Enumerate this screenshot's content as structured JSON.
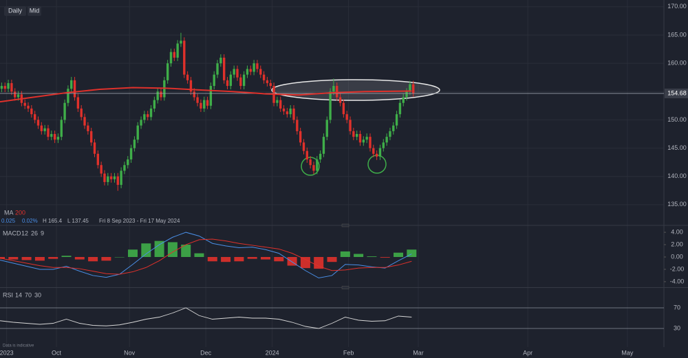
{
  "chart_data": {
    "type": "candlestick",
    "buttons": [
      "Daily",
      "Mid"
    ],
    "xlim": [
      0,
      200
    ],
    "xticks": [
      {
        "value": 2,
        "label": "2023"
      },
      {
        "value": 17,
        "label": "Oct"
      },
      {
        "value": 39,
        "label": "Nov"
      },
      {
        "value": 62,
        "label": "Dec"
      },
      {
        "value": 82,
        "label": "2024"
      },
      {
        "value": 105,
        "label": "Feb"
      },
      {
        "value": 126,
        "label": "Mar"
      },
      {
        "value": 159,
        "label": "Apr"
      },
      {
        "value": 189,
        "label": "May"
      }
    ],
    "ylim": [
      131.7,
      171.2
    ],
    "yticks": [
      {
        "value": 135,
        "label": "135.00"
      },
      {
        "value": 140,
        "label": "140.00"
      },
      {
        "value": 145,
        "label": "145.00"
      },
      {
        "value": 150,
        "label": "150.00"
      },
      {
        "value": 155,
        "label": "155.00"
      },
      {
        "value": 160,
        "label": "160.00"
      },
      {
        "value": 165,
        "label": "165.00"
      },
      {
        "value": 170,
        "label": "170.00"
      }
    ],
    "grid": true,
    "up_color": "#3fae49",
    "down_color": "#e0312b",
    "ohlc": [
      [
        155.5,
        156.6,
        154.9,
        156
      ],
      [
        156,
        156.6,
        154.9,
        155.5
      ],
      [
        155.5,
        157.1,
        154.9,
        156.5
      ],
      [
        156.5,
        157.1,
        154.4,
        155
      ],
      [
        155,
        155.6,
        153.4,
        154
      ],
      [
        154,
        155.1,
        153.4,
        154.5
      ],
      [
        154.5,
        155.1,
        152.4,
        153
      ],
      [
        153,
        153.6,
        151.9,
        152.5
      ],
      [
        152.5,
        153.1,
        151.4,
        152
      ],
      [
        152,
        152.6,
        150.4,
        151
      ],
      [
        151,
        151.6,
        149.4,
        150
      ],
      [
        150,
        150.6,
        148.4,
        149
      ],
      [
        149,
        149.6,
        147.4,
        148
      ],
      [
        148,
        149.1,
        147.4,
        148.5
      ],
      [
        148.5,
        149.1,
        146.4,
        147
      ],
      [
        147,
        148.1,
        146.4,
        147.5
      ],
      [
        147.5,
        148.1,
        145.9,
        146.5
      ],
      [
        146.5,
        147.6,
        145.9,
        147
      ],
      [
        147,
        150.6,
        146.4,
        150
      ],
      [
        150,
        153.6,
        149.4,
        153
      ],
      [
        153,
        156.1,
        152.4,
        155.5
      ],
      [
        155.5,
        157.6,
        154.9,
        157
      ],
      [
        157,
        157.6,
        153.4,
        154
      ],
      [
        154,
        154.6,
        151.4,
        152
      ],
      [
        152,
        152.6,
        149.9,
        150.5
      ],
      [
        150.5,
        151.1,
        148.4,
        149
      ],
      [
        149,
        149.6,
        147.4,
        148
      ],
      [
        148,
        148.6,
        145.4,
        146
      ],
      [
        146,
        146.6,
        143.4,
        144
      ],
      [
        144,
        144.6,
        141.4,
        142
      ],
      [
        142,
        142.6,
        139.9,
        140.5
      ],
      [
        140.5,
        141.1,
        138.4,
        139
      ],
      [
        139,
        140.6,
        138.4,
        140
      ],
      [
        140,
        140.6,
        138.9,
        139.5
      ],
      [
        139.5,
        140.6,
        138.9,
        140
      ],
      [
        140,
        140.6,
        137.45,
        138.5
      ],
      [
        138.5,
        141.6,
        137.9,
        141
      ],
      [
        141,
        142.6,
        140.4,
        142
      ],
      [
        142,
        143.6,
        141.4,
        143
      ],
      [
        143,
        145.6,
        142.4,
        145
      ],
      [
        145,
        147.1,
        144.4,
        146.5
      ],
      [
        146.5,
        149.6,
        145.9,
        149
      ],
      [
        149,
        150.6,
        148.4,
        150
      ],
      [
        150,
        151.6,
        149.4,
        151
      ],
      [
        151,
        151.6,
        149.9,
        150.5
      ],
      [
        150.5,
        152.6,
        149.9,
        152
      ],
      [
        152,
        154.1,
        151.4,
        153.5
      ],
      [
        153.5,
        155.6,
        152.9,
        155
      ],
      [
        155,
        155.6,
        153.4,
        154
      ],
      [
        154,
        157.6,
        153.4,
        157
      ],
      [
        157,
        160.6,
        156.4,
        160
      ],
      [
        160,
        162.6,
        159.4,
        162
      ],
      [
        162,
        162.6,
        160.4,
        161
      ],
      [
        161,
        164.1,
        160.4,
        163.5
      ],
      [
        163.5,
        165.4,
        162.9,
        164
      ],
      [
        164,
        164.6,
        157.4,
        158
      ],
      [
        158,
        158.6,
        156.4,
        157
      ],
      [
        157,
        157.6,
        154.4,
        155
      ],
      [
        155,
        155.6,
        153.4,
        154
      ],
      [
        154,
        154.6,
        152.4,
        153
      ],
      [
        153,
        153.6,
        151.4,
        152
      ],
      [
        152,
        154.1,
        151.4,
        153.5
      ],
      [
        153.5,
        154.1,
        151.9,
        152.5
      ],
      [
        152.5,
        156.6,
        151.9,
        156
      ],
      [
        156,
        158.6,
        155.4,
        158
      ],
      [
        158,
        160.6,
        157.4,
        160
      ],
      [
        160,
        161.6,
        159.4,
        161
      ],
      [
        161,
        161.6,
        156.4,
        157
      ],
      [
        157,
        157.6,
        155.4,
        156
      ],
      [
        156,
        158.6,
        155.4,
        158
      ],
      [
        158,
        159.6,
        157.4,
        159
      ],
      [
        159,
        159.6,
        156.9,
        157.5
      ],
      [
        157.5,
        158.1,
        155.4,
        156
      ],
      [
        156,
        158.6,
        155.4,
        158
      ],
      [
        158,
        159.6,
        157.4,
        159
      ],
      [
        159,
        159.6,
        157.9,
        158.5
      ],
      [
        158.5,
        160.6,
        157.9,
        160
      ],
      [
        160,
        160.6,
        158.4,
        159
      ],
      [
        159,
        159.6,
        157.4,
        158
      ],
      [
        158,
        158.6,
        156.4,
        157
      ],
      [
        157,
        157.6,
        155.9,
        156.5
      ],
      [
        156.5,
        157.1,
        155.4,
        156
      ],
      [
        156,
        156.6,
        152.4,
        153
      ],
      [
        153,
        154.1,
        152.4,
        153.5
      ],
      [
        153.5,
        154.1,
        151.4,
        152
      ],
      [
        152,
        152.6,
        150.9,
        151.5
      ],
      [
        151.5,
        152.1,
        150.4,
        151
      ],
      [
        151,
        152.6,
        150.4,
        152
      ],
      [
        152,
        152.6,
        149.4,
        150
      ],
      [
        150,
        150.6,
        147.4,
        148
      ],
      [
        148,
        148.6,
        145.4,
        146
      ],
      [
        146,
        146.6,
        143.9,
        144.5
      ],
      [
        144.5,
        145.1,
        142.4,
        143
      ],
      [
        143,
        143.6,
        141.4,
        142
      ],
      [
        142,
        142.6,
        140.4,
        141
      ],
      [
        141,
        143.6,
        140.4,
        143
      ],
      [
        143,
        144.6,
        142.4,
        144
      ],
      [
        144,
        147.6,
        143.4,
        147
      ],
      [
        147,
        150.6,
        146.4,
        150
      ],
      [
        150,
        155.6,
        149.4,
        155
      ],
      [
        155,
        157.3,
        154.4,
        156
      ],
      [
        156,
        156.6,
        153.4,
        154
      ],
      [
        154,
        154.6,
        152.4,
        153
      ],
      [
        153,
        153.6,
        150.4,
        151
      ],
      [
        151,
        151.6,
        149.4,
        150
      ],
      [
        150,
        150.6,
        147.4,
        148
      ],
      [
        148,
        148.6,
        146.4,
        147
      ],
      [
        147,
        148.1,
        146.4,
        147.5
      ],
      [
        147.5,
        148.1,
        145.4,
        146
      ],
      [
        146,
        147.1,
        145.4,
        146.5
      ],
      [
        146.5,
        147.6,
        145.9,
        147
      ],
      [
        147,
        147.6,
        144.4,
        145
      ],
      [
        145,
        145.6,
        143.4,
        144
      ],
      [
        144,
        144.6,
        142.9,
        143.5
      ],
      [
        143.5,
        145.6,
        142.9,
        145
      ],
      [
        145,
        146.6,
        144.4,
        146
      ],
      [
        146,
        147.6,
        145.4,
        147
      ],
      [
        147,
        148.6,
        146.4,
        148
      ],
      [
        148,
        149.6,
        147.4,
        149
      ],
      [
        149,
        151.6,
        148.4,
        151
      ],
      [
        151,
        153.6,
        150.4,
        153
      ],
      [
        153,
        154.6,
        152.4,
        154
      ],
      [
        154,
        155.6,
        153.4,
        155
      ],
      [
        155,
        156.9,
        154.4,
        156.3
      ],
      [
        156.3,
        156.9,
        154.1,
        154.68
      ]
    ],
    "ma": {
      "name": "MA",
      "period": 200,
      "color": "#e0312b",
      "x": [
        0,
        10,
        20,
        30,
        40,
        50,
        60,
        70,
        80,
        90,
        100,
        110,
        124
      ],
      "values": [
        153.2,
        154,
        154.8,
        155.4,
        155.7,
        155.6,
        155.3,
        155,
        154.6,
        154.4,
        154.8,
        155,
        155.1
      ]
    },
    "info": [
      "0.025",
      "0.02%",
      "H 165.4",
      "L 137.45",
      "Fri 8 Sep 2023 - Fri 17 May 2024"
    ],
    "macd": {
      "name": "MACD",
      "params": [
        12,
        26,
        9
      ],
      "ylim": [
        -4.9,
        4.9
      ],
      "yticks": [
        {
          "value": 4,
          "label": "4.00"
        },
        {
          "value": 2,
          "label": "2.00"
        },
        {
          "value": 0,
          "label": "0.00"
        },
        {
          "value": -2,
          "label": "-2.00"
        },
        {
          "value": -4,
          "label": "-4.00"
        }
      ],
      "x": [
        0,
        4,
        8,
        12,
        16,
        20,
        24,
        28,
        32,
        36,
        40,
        44,
        48,
        52,
        56,
        60,
        64,
        68,
        72,
        76,
        80,
        84,
        88,
        92,
        96,
        100,
        104,
        108,
        112,
        116,
        120,
        124
      ],
      "macd": [
        -0.5,
        -1,
        -1.5,
        -2,
        -2,
        -1.5,
        -2.3,
        -3,
        -3.3,
        -2.8,
        -1.2,
        0.5,
        2,
        3.2,
        4,
        3.4,
        2.2,
        1.8,
        1.5,
        1.6,
        1.2,
        0.6,
        -0.8,
        -2.2,
        -3.4,
        -3,
        -1.2,
        -1.3,
        -1.6,
        -1.8,
        -0.6,
        0.5
      ],
      "signal": [
        -0.2,
        -0.6,
        -1,
        -1.4,
        -1.7,
        -1.7,
        -1.9,
        -2.3,
        -2.7,
        -2.8,
        -2.4,
        -1.7,
        -0.6,
        0.8,
        2,
        2.8,
        2.9,
        2.6,
        2.2,
        1.9,
        1.6,
        1.3,
        0.6,
        -0.4,
        -1.5,
        -2.2,
        -2.1,
        -1.8,
        -1.7,
        -1.7,
        -1.3,
        -0.7
      ],
      "histogram": [
        -0.3,
        -0.4,
        -0.5,
        -0.6,
        -0.3,
        0.2,
        -0.4,
        -0.7,
        -0.6,
        0,
        1.2,
        2.2,
        2.6,
        2.4,
        2,
        0.6,
        -0.7,
        -0.8,
        -0.7,
        -0.3,
        -0.4,
        -0.7,
        -1.4,
        -1.8,
        -1.9,
        -0.8,
        0.9,
        0.5,
        0.1,
        -0.1,
        0.7,
        1.2
      ],
      "macd_color": "#4a8fe7",
      "signal_color": "#e0312b"
    },
    "rsi": {
      "name": "RSI",
      "params": [
        14,
        70,
        30
      ],
      "ylim": [
        0,
        100
      ],
      "yticks": [
        70,
        30
      ],
      "color": "#d9d9d9",
      "x": [
        0,
        4,
        8,
        12,
        16,
        20,
        24,
        28,
        32,
        36,
        40,
        44,
        48,
        52,
        56,
        60,
        64,
        68,
        72,
        76,
        80,
        84,
        88,
        92,
        96,
        100,
        104,
        108,
        112,
        116,
        120,
        124
      ],
      "values": [
        45,
        42,
        40,
        38,
        40,
        48,
        40,
        36,
        35,
        37,
        42,
        48,
        52,
        60,
        70,
        55,
        48,
        50,
        52,
        50,
        50,
        48,
        42,
        34,
        30,
        40,
        52,
        46,
        44,
        45,
        54,
        52
      ]
    },
    "note": "Data is indicative"
  }
}
